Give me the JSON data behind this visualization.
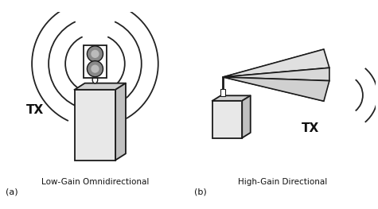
{
  "background_color": "#ffffff",
  "title_a": "Low-Gain Omnidirectional",
  "title_b": "High-Gain Directional",
  "label_a": "(a)",
  "label_b": "(b)",
  "tx_label": "TX",
  "box_face": "#e8e8e8",
  "box_top": "#d0d0d0",
  "box_right": "#c0c0c0",
  "box_edge": "#1a1a1a",
  "ant_face": "#ffffff",
  "circle_face": "#888888",
  "wave_color": "#222222",
  "text_color": "#111111",
  "tri_top_face": "#e0e0e0",
  "tri_bot_face": "#d0d0d0",
  "tri_side_face": "#c8c8c8"
}
